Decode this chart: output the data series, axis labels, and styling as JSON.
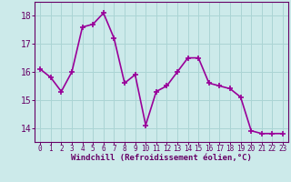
{
  "x": [
    0,
    1,
    2,
    3,
    4,
    5,
    6,
    7,
    8,
    9,
    10,
    11,
    12,
    13,
    14,
    15,
    16,
    17,
    18,
    19,
    20,
    21,
    22,
    23
  ],
  "y": [
    16.1,
    15.8,
    15.3,
    16.0,
    17.6,
    17.7,
    18.1,
    17.2,
    15.6,
    15.9,
    14.1,
    15.3,
    15.5,
    16.0,
    16.5,
    16.5,
    15.6,
    15.5,
    15.4,
    15.1,
    13.9,
    13.8,
    13.8,
    13.8
  ],
  "ylim": [
    13.5,
    18.5
  ],
  "yticks": [
    14,
    15,
    16,
    17,
    18
  ],
  "xlabel": "Windchill (Refroidissement éolien,°C)",
  "line_color": "#990099",
  "marker": "+",
  "bg_color": "#cceaea",
  "grid_color": "#aad4d4",
  "axis_color": "#660066",
  "tick_color": "#660066",
  "label_color": "#660066",
  "tick_fontsize": 5.5,
  "label_fontsize": 6.5,
  "linewidth": 1.2,
  "markersize": 4,
  "markeredgewidth": 1.2
}
